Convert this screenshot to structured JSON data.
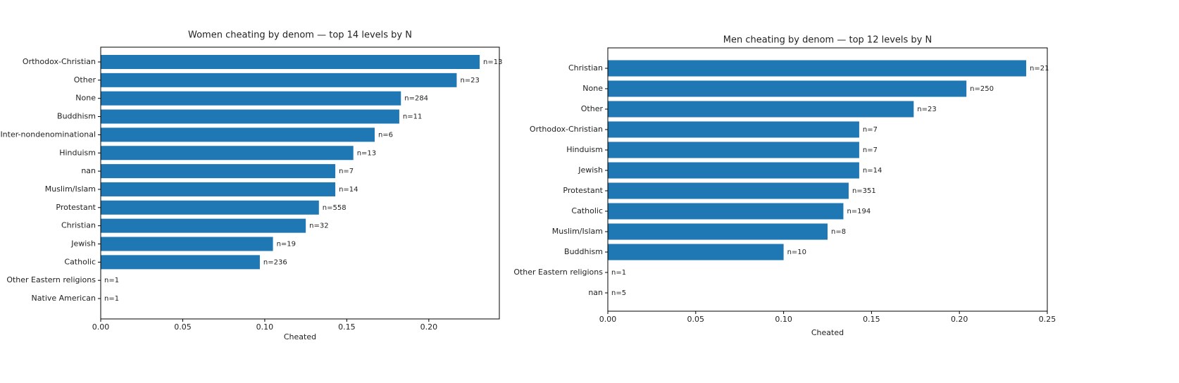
{
  "chart_data": [
    {
      "type": "barh",
      "title": "Women cheating by denom — top 14 levels by N",
      "x_label": "Cheated",
      "categories": [
        "Orthodox-Christian",
        "Other",
        "None",
        "Buddhism",
        "Inter-nondenominational",
        "Hinduism",
        "nan",
        "Muslim/Islam",
        "Protestant",
        "Christian",
        "Jewish",
        "Catholic",
        "Other Eastern religions",
        "Native American"
      ],
      "values": [
        0.231,
        0.217,
        0.183,
        0.182,
        0.167,
        0.154,
        0.143,
        0.143,
        0.133,
        0.125,
        0.105,
        0.097,
        0,
        0
      ],
      "bar_notes": [
        "n=13",
        "n=23",
        "n=284",
        "n=11",
        "n=6",
        "n=13",
        "n=7",
        "n=14",
        "n=558",
        "n=32",
        "n=19",
        "n=236",
        "n=1",
        "n=1"
      ],
      "color": "#1f77b4",
      "xlim": [
        0,
        0.243
      ],
      "xticks": [
        {
          "value": 0,
          "label": "0.00"
        },
        0.05,
        {
          "value": 0.1,
          "label": "0.10"
        },
        0.15,
        {
          "value": 0.2,
          "label": "0.20"
        }
      ]
    },
    {
      "type": "barh",
      "title": "Men cheating by denom — top 12 levels by N",
      "x_label": "Cheated",
      "categories": [
        "Christian",
        "None",
        "Other",
        "Orthodox-Christian",
        "Hinduism",
        "Jewish",
        "Protestant",
        "Catholic",
        "Muslim/Islam",
        "Buddhism",
        "Other Eastern religions",
        "nan"
      ],
      "values": [
        0.238,
        0.204,
        0.174,
        0.143,
        0.143,
        0.143,
        0.137,
        0.134,
        0.125,
        0.1,
        0,
        0
      ],
      "bar_notes": [
        "n=21",
        "n=250",
        "n=23",
        "n=7",
        "n=7",
        "n=14",
        "n=351",
        "n=194",
        "n=8",
        "n=10",
        "n=1",
        "n=5"
      ],
      "color": "#1f77b4",
      "xlim": [
        0,
        0.25
      ],
      "xticks": [
        {
          "value": 0,
          "label": "0.00"
        },
        0.05,
        {
          "value": 0.1,
          "label": "0.10"
        },
        0.15,
        {
          "value": 0.2,
          "label": "0.20"
        },
        0.25
      ]
    }
  ]
}
